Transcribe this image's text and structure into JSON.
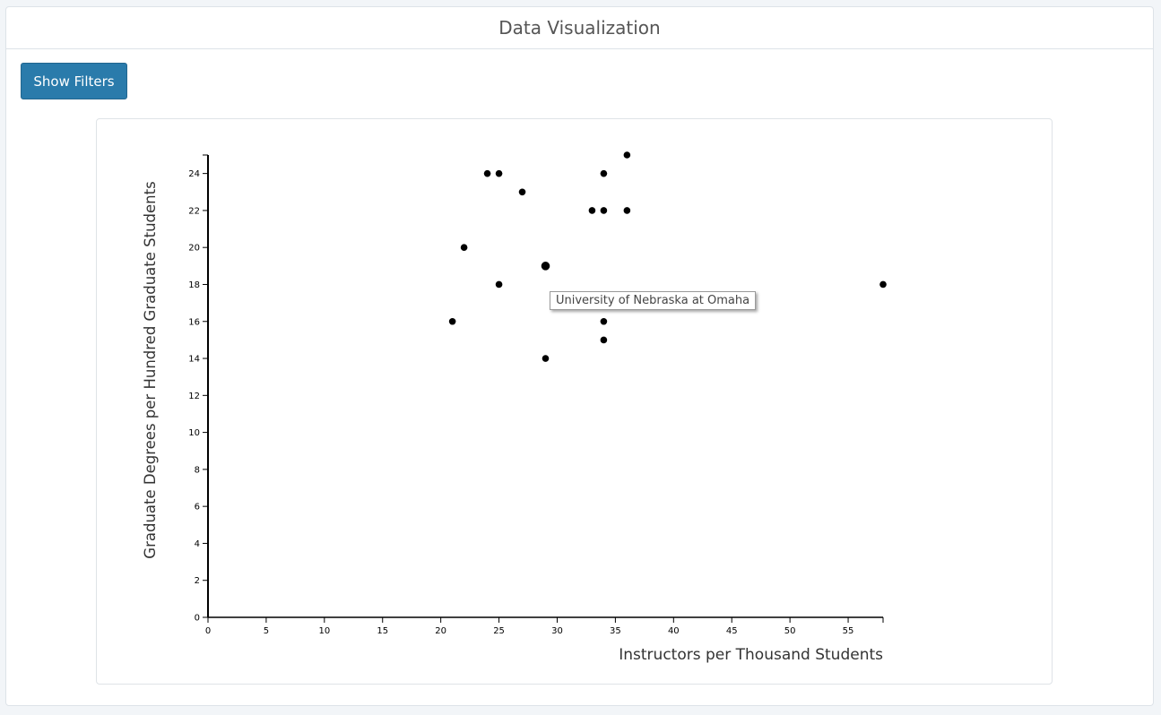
{
  "header": {
    "title": "Data Visualization"
  },
  "toolbar": {
    "show_filters_label": "Show Filters"
  },
  "tooltip": {
    "text": "University of Nebraska at Omaha"
  },
  "colors": {
    "accent": "#2a7bab",
    "point": "#000000"
  },
  "chart_data": {
    "type": "scatter",
    "xlabel": "Instructors per Thousand Students",
    "ylabel": "Graduate Degrees per Hundred Graduate Students",
    "xlim": [
      0,
      58
    ],
    "ylim": [
      0,
      25
    ],
    "xticks": [
      0,
      5,
      10,
      15,
      20,
      25,
      30,
      35,
      40,
      45,
      50,
      55
    ],
    "yticks": [
      0,
      2,
      4,
      6,
      8,
      10,
      12,
      14,
      16,
      18,
      20,
      22,
      24
    ],
    "grid": false,
    "highlighted_point": {
      "x": 29,
      "y": 19,
      "label": "University of Nebraska at Omaha"
    },
    "points": [
      {
        "x": 36,
        "y": 25
      },
      {
        "x": 24,
        "y": 24
      },
      {
        "x": 25,
        "y": 24
      },
      {
        "x": 34,
        "y": 24
      },
      {
        "x": 27,
        "y": 23
      },
      {
        "x": 33,
        "y": 22
      },
      {
        "x": 34,
        "y": 22
      },
      {
        "x": 36,
        "y": 22
      },
      {
        "x": 22,
        "y": 20
      },
      {
        "x": 29,
        "y": 19
      },
      {
        "x": 25,
        "y": 18
      },
      {
        "x": 58,
        "y": 18
      },
      {
        "x": 21,
        "y": 16
      },
      {
        "x": 34,
        "y": 16
      },
      {
        "x": 34,
        "y": 15
      },
      {
        "x": 29,
        "y": 14
      }
    ]
  }
}
